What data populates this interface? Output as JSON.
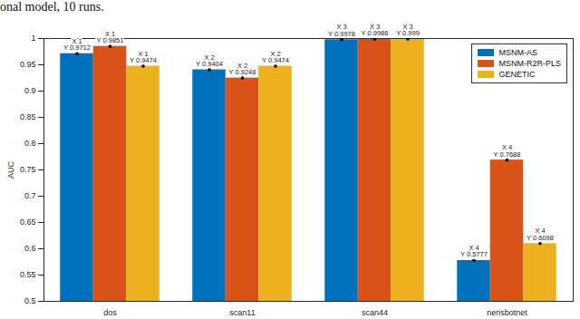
{
  "chart_data": {
    "type": "bar",
    "title": "onal model, 10 runs.",
    "categories": [
      "dos",
      "scan11",
      "scan44",
      "nerisbotnet"
    ],
    "y_label": "AUC",
    "ylim": [
      0.5,
      1
    ],
    "yticks": [
      0.5,
      0.55,
      0.6,
      0.65,
      0.7,
      0.75,
      0.8,
      0.85,
      0.9,
      0.95,
      1
    ],
    "grid": false,
    "legend": "upper right",
    "series": [
      {
        "name": "MSNM-AS",
        "color": "#0072BD",
        "values": [
          0.9712,
          0.9404,
          0.9978,
          0.5777
        ]
      },
      {
        "name": "MSNM-R2R-PLS",
        "color": "#D95319",
        "values": [
          0.9851,
          0.9248,
          0.9986,
          0.7688
        ]
      },
      {
        "name": "GENETIC",
        "color": "#EDB120",
        "values": [
          0.9474,
          0.9474,
          0.999,
          0.6098
        ]
      }
    ],
    "annotations": [
      {
        "category": "dos",
        "series": "MSNM-AS",
        "text": [
          "X 1",
          "Y 0.9712"
        ]
      },
      {
        "category": "dos",
        "series": "MSNM-R2R-PLS",
        "text": [
          "X 1",
          "Y 0.9851"
        ]
      },
      {
        "category": "dos",
        "series": "GENETIC",
        "text": [
          "X 1",
          "Y 0.9474"
        ]
      },
      {
        "category": "scan11",
        "series": "MSNM-AS",
        "text": [
          "X 2",
          "Y 0.9404"
        ]
      },
      {
        "category": "scan11",
        "series": "MSNM-R2R-PLS",
        "text": [
          "X 2",
          "Y 0.9248"
        ]
      },
      {
        "category": "scan11",
        "series": "GENETIC",
        "text": [
          "X 2",
          "Y 0.9474"
        ]
      },
      {
        "category": "scan44",
        "series": "MSNM-AS",
        "text": [
          "X 3",
          "Y 0.9978"
        ]
      },
      {
        "category": "scan44",
        "series": "MSNM-R2R-PLS",
        "text": [
          "X 3",
          "Y 0.9986"
        ]
      },
      {
        "category": "scan44",
        "series": "GENETIC",
        "text": [
          "X 3",
          "Y 0.999"
        ]
      },
      {
        "category": "nerisbotnet",
        "series": "MSNM-AS",
        "text": [
          "X 4",
          "Y 0.5777"
        ]
      },
      {
        "category": "nerisbotnet",
        "series": "MSNM-R2R-PLS",
        "text": [
          "X 4",
          "Y 0.7688"
        ]
      },
      {
        "category": "nerisbotnet",
        "series": "GENETIC",
        "text": [
          "X 4",
          "Y 0.6098"
        ]
      }
    ]
  }
}
